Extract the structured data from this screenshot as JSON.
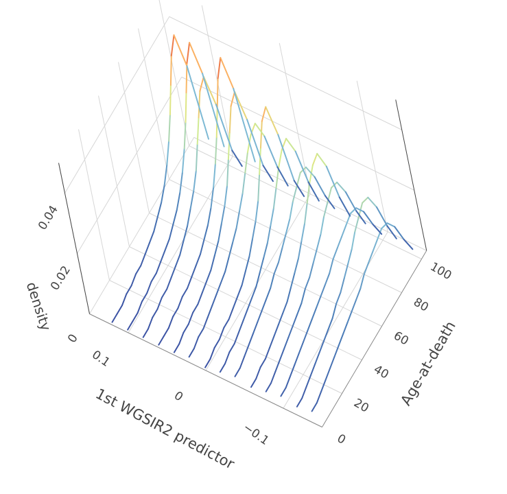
{
  "chart_data": {
    "type": "line3d",
    "x_title": "1st WGSIR2 predictor",
    "y_title": "Age-at-death",
    "z_title": "density",
    "xlim": [
      -0.15,
      0.15
    ],
    "ylim": [
      0,
      105
    ],
    "zlim": [
      0,
      0.05
    ],
    "xticks": [
      {
        "value": -0.1,
        "label": "−0.1"
      },
      0,
      0.1
    ],
    "yticks": [
      0,
      20,
      40,
      60,
      80,
      100
    ],
    "zticks": [
      0,
      0.02,
      0.04
    ],
    "grid": true,
    "colors": [
      "#3a4fa2",
      "#4a7bb7",
      "#80bcd6",
      "#d9ef8b",
      "#fdae61",
      "#d73027"
    ],
    "ages": [
      0,
      5,
      10,
      15,
      20,
      25,
      30,
      35,
      40,
      45,
      50,
      55,
      60,
      65,
      70,
      75,
      80,
      85,
      90,
      95,
      100
    ],
    "series": [
      {
        "predictor": -0.14,
        "values": [
          0.004,
          0.004,
          0.005,
          0.006,
          0.007,
          0.008,
          0.009,
          0.01,
          0.011,
          0.012,
          0.013,
          0.014,
          0.016,
          0.017,
          0.018,
          0.019,
          0.02,
          0.019,
          0.015,
          0.008,
          0.002
        ]
      },
      {
        "predictor": -0.12,
        "values": [
          0.003,
          0.003,
          0.004,
          0.005,
          0.006,
          0.007,
          0.008,
          0.009,
          0.01,
          0.012,
          0.013,
          0.015,
          0.017,
          0.019,
          0.022,
          0.024,
          0.026,
          0.025,
          0.019,
          0.01,
          0.003
        ]
      },
      {
        "predictor": -0.1,
        "values": [
          0.004,
          0.004,
          0.005,
          0.006,
          0.007,
          0.008,
          0.009,
          0.01,
          0.011,
          0.012,
          0.013,
          0.014,
          0.016,
          0.017,
          0.018,
          0.019,
          0.02,
          0.019,
          0.015,
          0.008,
          0.002
        ]
      },
      {
        "predictor": -0.08,
        "values": [
          0.003,
          0.003,
          0.004,
          0.005,
          0.006,
          0.007,
          0.008,
          0.009,
          0.01,
          0.012,
          0.013,
          0.015,
          0.017,
          0.019,
          0.022,
          0.024,
          0.026,
          0.025,
          0.019,
          0.01,
          0.003
        ]
      },
      {
        "predictor": -0.06,
        "values": [
          0.002,
          0.002,
          0.003,
          0.003,
          0.004,
          0.005,
          0.006,
          0.007,
          0.008,
          0.01,
          0.012,
          0.014,
          0.017,
          0.02,
          0.024,
          0.028,
          0.031,
          0.032,
          0.025,
          0.012,
          0.003
        ]
      },
      {
        "predictor": -0.04,
        "values": [
          0.003,
          0.003,
          0.004,
          0.005,
          0.006,
          0.007,
          0.008,
          0.009,
          0.01,
          0.012,
          0.013,
          0.015,
          0.017,
          0.019,
          0.022,
          0.024,
          0.026,
          0.025,
          0.019,
          0.01,
          0.003
        ]
      },
      {
        "predictor": -0.02,
        "values": [
          0.002,
          0.002,
          0.003,
          0.003,
          0.004,
          0.005,
          0.006,
          0.007,
          0.008,
          0.01,
          0.012,
          0.014,
          0.017,
          0.02,
          0.024,
          0.028,
          0.031,
          0.032,
          0.025,
          0.012,
          0.003
        ]
      },
      {
        "predictor": 0,
        "values": [
          0.001,
          0.001,
          0.002,
          0.002,
          0.003,
          0.003,
          0.004,
          0.005,
          0.006,
          0.008,
          0.01,
          0.013,
          0.016,
          0.02,
          0.026,
          0.032,
          0.038,
          0.04,
          0.028,
          0.01,
          0.002
        ]
      },
      {
        "predictor": 0.02,
        "values": [
          0.002,
          0.002,
          0.003,
          0.003,
          0.004,
          0.005,
          0.006,
          0.007,
          0.008,
          0.01,
          0.012,
          0.014,
          0.017,
          0.02,
          0.024,
          0.028,
          0.031,
          0.032,
          0.025,
          0.012,
          0.003
        ]
      },
      {
        "predictor": 0.04,
        "values": [
          0.001,
          0.001,
          0.002,
          0.002,
          0.003,
          0.003,
          0.004,
          0.005,
          0.006,
          0.008,
          0.01,
          0.013,
          0.016,
          0.02,
          0.026,
          0.032,
          0.038,
          0.04,
          0.028,
          0.01,
          0.002
        ]
      },
      {
        "predictor": 0.06,
        "values": [
          0.001,
          0.001,
          0.001,
          0.002,
          0.002,
          0.003,
          0.003,
          0.004,
          0.005,
          0.006,
          0.008,
          0.01,
          0.013,
          0.017,
          0.022,
          0.028,
          0.035,
          0.042,
          0.046,
          0.033,
          0.006
        ]
      },
      {
        "predictor": 0.08,
        "values": [
          0.001,
          0.001,
          0.002,
          0.002,
          0.003,
          0.003,
          0.004,
          0.005,
          0.006,
          0.008,
          0.01,
          0.013,
          0.016,
          0.02,
          0.026,
          0.032,
          0.038,
          0.04,
          0.028,
          0.01,
          0.002
        ]
      },
      {
        "predictor": 0.1,
        "values": [
          0.001,
          0.001,
          0.001,
          0.002,
          0.002,
          0.003,
          0.003,
          0.004,
          0.005,
          0.006,
          0.008,
          0.01,
          0.013,
          0.017,
          0.022,
          0.028,
          0.035,
          0.042,
          0.046,
          0.033,
          0.006
        ]
      },
      {
        "predictor": 0.12,
        "values": [
          0.001,
          0.001,
          0.001,
          0.002,
          0.002,
          0.003,
          0.003,
          0.004,
          0.005,
          0.006,
          0.008,
          0.01,
          0.013,
          0.017,
          0.022,
          0.028,
          0.035,
          0.042,
          0.046,
          0.033,
          0.006
        ]
      }
    ]
  }
}
